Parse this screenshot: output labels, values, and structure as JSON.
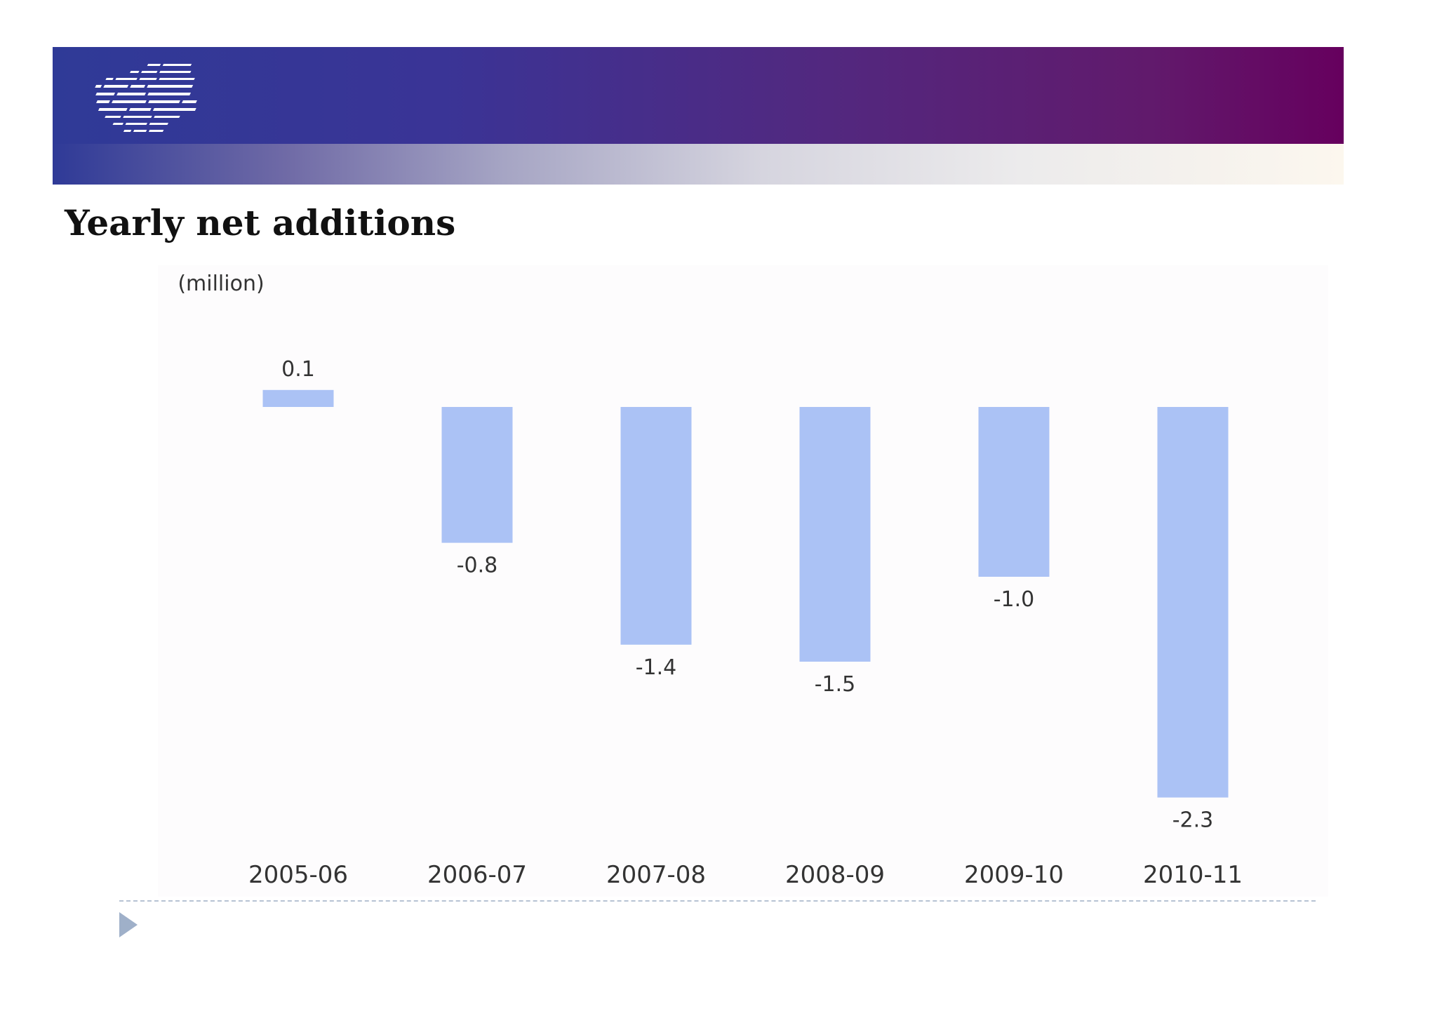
{
  "slide": {
    "title": "Yearly net additions"
  },
  "colors": {
    "banner_start": "#2f3a97",
    "banner_end": "#66005e",
    "bar": "#abc2f5",
    "label": "#333333",
    "divider": "#b6c2d3",
    "bullet": "#9fb0c9"
  },
  "icons": {
    "logo": "striped-logo-icon",
    "bullet": "triangle-bullet-icon"
  },
  "chart_data": {
    "type": "bar",
    "title": "",
    "unit_label": "(million)",
    "xlabel": "",
    "ylabel": "",
    "categories": [
      "2005-06",
      "2006-07",
      "2007-08",
      "2008-09",
      "2009-10",
      "2010-11"
    ],
    "values": [
      0.1,
      -0.8,
      -1.4,
      -1.5,
      -1.0,
      -2.3
    ],
    "value_labels": [
      "0.1",
      "-0.8",
      "-1.4",
      "-1.5",
      "-1.0",
      "-2.3"
    ],
    "ylim": [
      -2.5,
      0.5
    ],
    "grid": false,
    "legend": "none",
    "show_y_axis": false
  }
}
